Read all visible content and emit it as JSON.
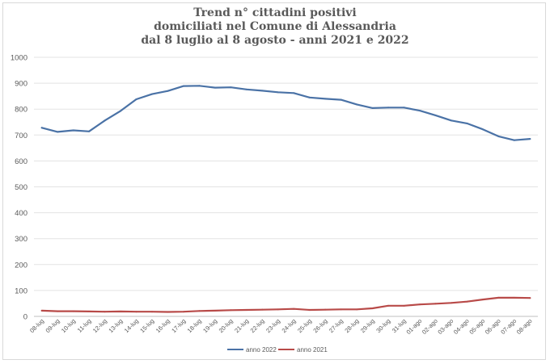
{
  "chart_data": {
    "type": "line",
    "title": [
      "Trend n° cittadini positivi",
      "domiciliati nel Comune di Alessandria",
      "dal 8 luglio al 8 agosto - anni 2021 e 2022"
    ],
    "categories": [
      "08-lug",
      "09-lug",
      "10-lug",
      "11-lug",
      "12-lug",
      "13-lug",
      "14-lug",
      "15-lug",
      "16-lug",
      "17-lug",
      "18-lug",
      "19-lug",
      "20-lug",
      "21-lug",
      "22-lug",
      "23-lug",
      "24-lug",
      "25-lug",
      "26-lug",
      "27-lug",
      "28-lug",
      "29-lug",
      "30-lug",
      "31-lug",
      "01-ago",
      "02-ago",
      "03-ago",
      "04-ago",
      "05-ago",
      "06-ago",
      "07-ago",
      "08-ago"
    ],
    "ylim": [
      0,
      1000
    ],
    "yticks": [
      "0",
      "100",
      "200",
      "300",
      "400",
      "500",
      "600",
      "700",
      "800",
      "900",
      "1000"
    ],
    "grid": true,
    "legend_position": "bottom",
    "series": [
      {
        "name": "anno 2022",
        "color": "#4a72a6",
        "values": [
          728,
          712,
          718,
          714,
          756,
          793,
          838,
          858,
          870,
          889,
          890,
          883,
          884,
          876,
          871,
          865,
          862,
          845,
          840,
          836,
          818,
          804,
          806,
          806,
          794,
          776,
          756,
          745,
          722,
          695,
          680,
          685
        ]
      },
      {
        "name": "anno 2021",
        "color": "#b84a48",
        "values": [
          22,
          20,
          20,
          19,
          18,
          19,
          18,
          18,
          17,
          18,
          21,
          22,
          24,
          25,
          26,
          27,
          29,
          25,
          26,
          27,
          27,
          31,
          41,
          41,
          46,
          49,
          52,
          57,
          65,
          72,
          72,
          71
        ]
      }
    ]
  }
}
